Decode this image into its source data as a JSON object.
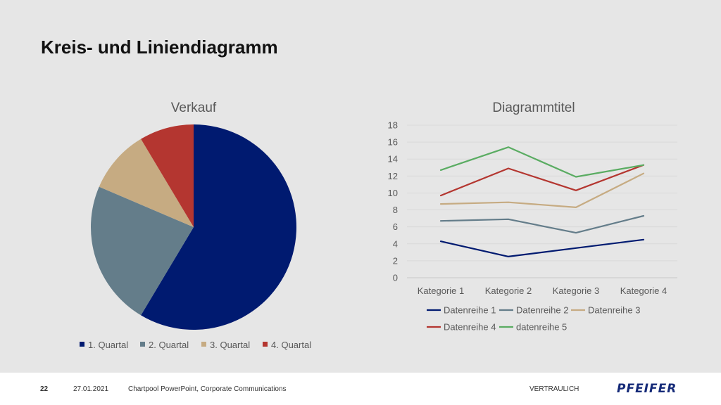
{
  "slide": {
    "title": "Kreis- und Liniendiagramm"
  },
  "chart_data": [
    {
      "type": "pie",
      "title": "Verkauf",
      "labels": [
        "1. Quartal",
        "2. Quartal",
        "3. Quartal",
        "4. Quartal"
      ],
      "values": [
        8.2,
        3.2,
        1.4,
        1.2
      ],
      "colors": [
        "#001a70",
        "#647d8a",
        "#c6ab82",
        "#b43630"
      ],
      "legend": "bottom"
    },
    {
      "type": "line",
      "title": "Diagrammtitel",
      "categories": [
        "Kategorie 1",
        "Kategorie 2",
        "Kategorie 3",
        "Kategorie 4"
      ],
      "ylim": [
        0,
        18
      ],
      "yticks": [
        0,
        2,
        4,
        6,
        8,
        10,
        12,
        14,
        16,
        18
      ],
      "grid": true,
      "legend": "bottom",
      "series": [
        {
          "name": "Datenreihe 1",
          "color": "#001a70",
          "values": [
            4.3,
            2.5,
            3.5,
            4.5
          ]
        },
        {
          "name": "Datenreihe 2",
          "color": "#647d8a",
          "values": [
            6.7,
            6.9,
            5.3,
            7.3
          ]
        },
        {
          "name": "Datenreihe 3",
          "color": "#c6ab82",
          "values": [
            8.7,
            8.9,
            8.3,
            12.3
          ]
        },
        {
          "name": "Datenreihe 4",
          "color": "#b43630",
          "values": [
            9.7,
            12.9,
            10.3,
            13.3
          ]
        },
        {
          "name": "datenreihe 5",
          "color": "#5aac62",
          "values": [
            12.7,
            15.4,
            11.9,
            13.3
          ]
        }
      ]
    }
  ],
  "footer": {
    "page": "22",
    "date": "27.01.2021",
    "text": "Chartpool PowerPoint, Corporate Communications",
    "confidential": "VERTRAULICH",
    "logo": "PFEIFER"
  }
}
